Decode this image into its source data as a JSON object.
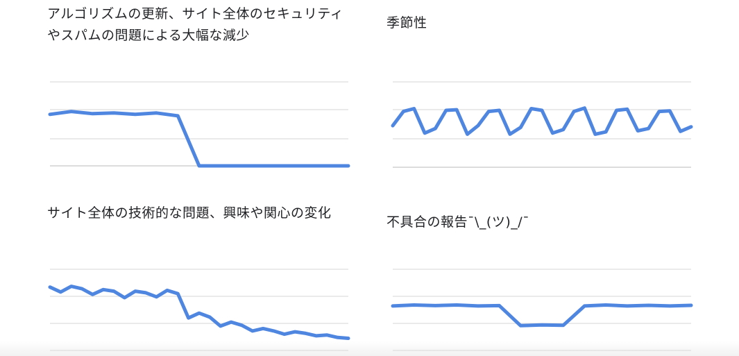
{
  "colors": {
    "line": "#4f86e0",
    "grid": "#e3e3e3"
  },
  "chart_data": [
    {
      "id": "algorithm",
      "type": "line",
      "title": "アルゴリズムの更新、サイト全体のセキュリティ\nやスパムの問題による大幅な減少",
      "grid": true,
      "series": [
        {
          "values": [
            72,
            76,
            73,
            74,
            72,
            74,
            70,
            0,
            0,
            0,
            0,
            0,
            0,
            0,
            0
          ]
        }
      ],
      "ylim": [
        0,
        100
      ]
    },
    {
      "id": "seasonality",
      "type": "line",
      "title": "季節性",
      "grid": true,
      "series": [
        {
          "values": [
            45,
            70,
            75,
            32,
            40,
            72,
            73,
            30,
            45,
            70,
            72,
            30,
            42,
            75,
            72,
            32,
            38,
            70,
            76,
            30,
            34,
            72,
            74,
            36,
            40,
            70,
            71,
            35,
            43
          ]
        }
      ],
      "ylim": [
        0,
        100
      ]
    },
    {
      "id": "technical",
      "type": "line",
      "title": "サイト全体の技術的な問題、興味や関心の変化",
      "grid": true,
      "series": [
        {
          "values": [
            78,
            72,
            79,
            76,
            69,
            75,
            73,
            65,
            73,
            71,
            66,
            74,
            70,
            40,
            46,
            41,
            30,
            35,
            31,
            24,
            27,
            24,
            20,
            23,
            21,
            18,
            19,
            16,
            15
          ]
        }
      ],
      "ylim": [
        0,
        100
      ]
    },
    {
      "id": "bug",
      "type": "line",
      "title": "不具合の報告¯\\_(ツ)_/¯",
      "grid": true,
      "series": [
        {
          "values": [
            60,
            63,
            61,
            63,
            60,
            61,
            0,
            2,
            1,
            60,
            63,
            60,
            62,
            60,
            62
          ]
        }
      ],
      "ylim": [
        -10,
        100
      ]
    }
  ]
}
